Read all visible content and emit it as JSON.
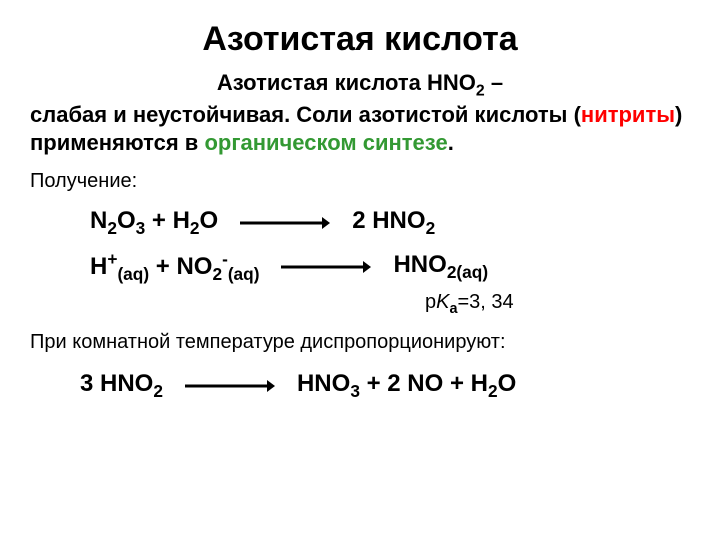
{
  "title": "Азотистая кислота",
  "intro": {
    "part1": "Азотистая кислота HNO",
    "part1_sub": "2",
    "part1_end": " –",
    "part2a": "слабая и неустойчивая. Соли азотистой кислоты (",
    "part2_red": "нитриты",
    "part2b": ") применяются в ",
    "part2_green": "органическом синтезе",
    "part2c": "."
  },
  "section_label": "Получение:",
  "eq1": {
    "left_html": "N<sub>2</sub>O<sub>3</sub> + H<sub>2</sub>O",
    "right_html": "2 HNO<sub>2</sub>"
  },
  "eq2": {
    "left_html": "H<sup>+</sup><sub>(aq)</sub> + NO<sub>2</sub><sup>-</sup><sub>(aq)</sub>",
    "right_html": "HNO<sub>2(aq)</sub>"
  },
  "pka": {
    "prefix": "p",
    "k": "K",
    "sub": "a",
    "val": "=3, 34"
  },
  "note": "При комнатной температуре диспропорционируют:",
  "eq3": {
    "left_html": "3 HNO<sub>2</sub>",
    "right_html": "HNO<sub>3</sub> + 2 NO + H<sub>2</sub>O"
  },
  "arrow": {
    "color": "#000000",
    "width": 90,
    "stroke": 3
  }
}
